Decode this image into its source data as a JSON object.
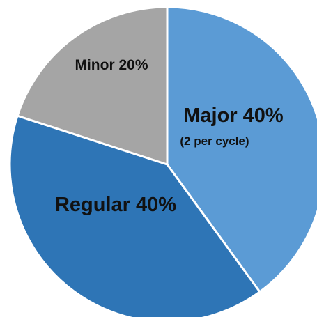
{
  "chart_data": {
    "type": "pie",
    "title": "",
    "slices": [
      {
        "label": "Major 40%",
        "sublabel": "(2 per cycle)",
        "value": 40,
        "color": "#5b9bd5"
      },
      {
        "label": "Regular 40%",
        "value": 40,
        "color": "#2e75b6"
      },
      {
        "label": "Minor 20%",
        "value": 20,
        "color": "#a5a5a5"
      }
    ],
    "start_angle_deg": 0,
    "direction": "clockwise",
    "legend": "none"
  }
}
